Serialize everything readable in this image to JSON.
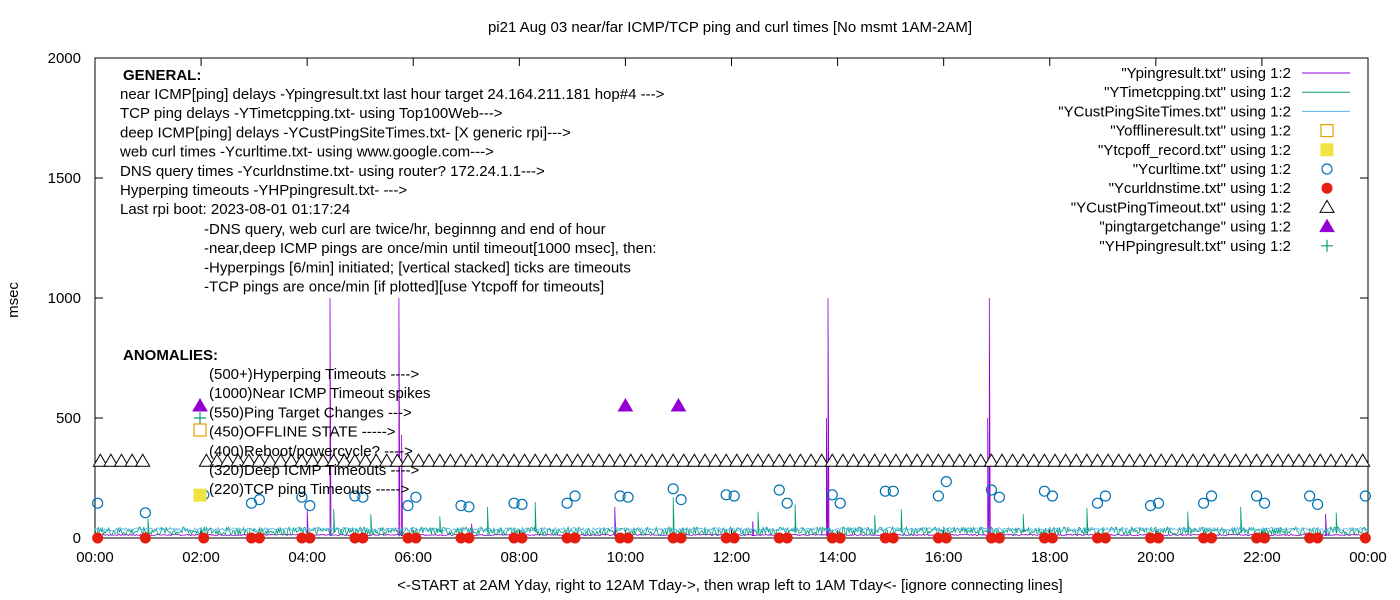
{
  "chart_data": {
    "type": "line",
    "title": "pi21 Aug 03  near/far ICMP/TCP ping and curl times [No msmt 1AM-2AM]",
    "xlabel": "<-START at 2AM Yday, right to 12AM Tday->, then wrap left to 1AM Tday<- [ignore connecting lines]",
    "ylabel": "msec",
    "xlim": [
      0,
      24
    ],
    "ylim": [
      0,
      2000
    ],
    "grid": false,
    "legend_position": "top-right",
    "x_ticks": [
      {
        "v": 0,
        "label": "00:00"
      },
      {
        "v": 2,
        "label": "02:00"
      },
      {
        "v": 4,
        "label": "04:00"
      },
      {
        "v": 6,
        "label": "06:00"
      },
      {
        "v": 8,
        "label": "08:00"
      },
      {
        "v": 10,
        "label": "10:00"
      },
      {
        "v": 12,
        "label": "12:00"
      },
      {
        "v": 14,
        "label": "14:00"
      },
      {
        "v": 16,
        "label": "16:00"
      },
      {
        "v": 18,
        "label": "18:00"
      },
      {
        "v": 20,
        "label": "20:00"
      },
      {
        "v": 22,
        "label": "22:00"
      },
      {
        "v": 24,
        "label": "00:00"
      }
    ],
    "y_ticks": [
      {
        "v": 0,
        "label": "0"
      },
      {
        "v": 500,
        "label": "500"
      },
      {
        "v": 1000,
        "label": "1000"
      },
      {
        "v": 1500,
        "label": "1500"
      },
      {
        "v": 2000,
        "label": "2000"
      }
    ],
    "annotations": {
      "general_heading": "GENERAL:",
      "general_lines": [
        "near ICMP[ping] delays -Ypingresult.txt last hour target 24.164.211.181 hop#4 --->",
        "TCP ping delays -YTimetcpping.txt- using Top100Web--->",
        "deep ICMP[ping] delays -YCustPingSiteTimes.txt- [X generic rpi]--->",
        "web curl times -Ycurltime.txt- using www.google.com--->",
        "DNS query times -Ycurldnstime.txt- using router? 172.24.1.1--->",
        "Hyperping timeouts -YHPpingresult.txt- --->",
        "Last rpi boot: 2023-08-01 01:17:24"
      ],
      "notes": [
        "-DNS query, web curl are twice/hr, beginnng and end of hour",
        "-near,deep ICMP pings are once/min until timeout[1000 msec], then:",
        "  -Hyperpings [6/min] initiated; [vertical stacked] ticks are timeouts",
        "-TCP pings are once/min [if plotted][use Ytcpoff for timeouts]"
      ],
      "anomalies_heading": "ANOMALIES:",
      "anomaly_lines": [
        "(500+)Hyperping Timeouts ---->",
        "(1000)Near ICMP Timeout spikes",
        "(550)Ping Target Changes --->",
        "(450)OFFLINE STATE ----->",
        "(400)Reboot/powercycle? ---->",
        "(320)Deep ICMP Timeouts ---->",
        "(220)TCP ping Timeouts ----->"
      ]
    },
    "series": [
      {
        "name": "\"Ypingresult.txt\" using 1:2",
        "color": "#9400d3",
        "style": "line",
        "baseline": 10,
        "spikes": [
          {
            "x": 4.43,
            "y": 1000
          },
          {
            "x": 5.73,
            "y": 1000
          },
          {
            "x": 5.78,
            "y": 430
          },
          {
            "x": 13.82,
            "y": 1000
          },
          {
            "x": 13.79,
            "y": 500
          },
          {
            "x": 16.86,
            "y": 1000
          },
          {
            "x": 16.83,
            "y": 500
          },
          {
            "x": 4.0,
            "y": 120
          },
          {
            "x": 7.1,
            "y": 60
          },
          {
            "x": 9.8,
            "y": 130
          },
          {
            "x": 12.4,
            "y": 70
          },
          {
            "x": 23.2,
            "y": 100
          }
        ]
      },
      {
        "name": "\"YTimetcpping.txt\" using 1:2",
        "color": "#009e73",
        "style": "line",
        "baseline": 25,
        "noise_amplitude": 35,
        "spikes": [
          {
            "x": 1.0,
            "y": 80
          },
          {
            "x": 4.5,
            "y": 120
          },
          {
            "x": 5.2,
            "y": 100
          },
          {
            "x": 6.5,
            "y": 90
          },
          {
            "x": 7.4,
            "y": 130
          },
          {
            "x": 8.3,
            "y": 150
          },
          {
            "x": 10.9,
            "y": 170
          },
          {
            "x": 12.5,
            "y": 110
          },
          {
            "x": 13.2,
            "y": 140
          },
          {
            "x": 14.7,
            "y": 95
          },
          {
            "x": 15.2,
            "y": 120
          },
          {
            "x": 17.5,
            "y": 100
          },
          {
            "x": 18.7,
            "y": 125
          },
          {
            "x": 20.6,
            "y": 110
          },
          {
            "x": 21.6,
            "y": 130
          },
          {
            "x": 23.4,
            "y": 105
          }
        ]
      },
      {
        "name": "\"YCustPingSiteTimes.txt\" using 1:2",
        "color": "#56b4e9",
        "style": "line",
        "baseline": 35,
        "noise_amplitude": 15
      },
      {
        "name": "\"Yofflineresult.txt\" using 1:2",
        "color": "#e69f00",
        "style": "open-square",
        "points": []
      },
      {
        "name": "\"Ytcpoff_record.txt\" using 1:2",
        "color": "#f0e442",
        "style": "filled-square",
        "points": []
      },
      {
        "name": "\"Ycurltime.txt\" using 1:2",
        "color": "#0072b2",
        "style": "open-circle",
        "points": [
          {
            "x": 0.05,
            "y": 145
          },
          {
            "x": 0.95,
            "y": 105
          },
          {
            "x": 2.05,
            "y": 180
          },
          {
            "x": 2.95,
            "y": 145
          },
          {
            "x": 3.1,
            "y": 160
          },
          {
            "x": 3.9,
            "y": 170
          },
          {
            "x": 4.05,
            "y": 135
          },
          {
            "x": 4.9,
            "y": 175
          },
          {
            "x": 5.05,
            "y": 170
          },
          {
            "x": 5.9,
            "y": 135
          },
          {
            "x": 6.05,
            "y": 170
          },
          {
            "x": 6.9,
            "y": 135
          },
          {
            "x": 7.05,
            "y": 130
          },
          {
            "x": 7.9,
            "y": 145
          },
          {
            "x": 8.05,
            "y": 140
          },
          {
            "x": 8.9,
            "y": 145
          },
          {
            "x": 9.05,
            "y": 175
          },
          {
            "x": 9.9,
            "y": 175
          },
          {
            "x": 10.05,
            "y": 170
          },
          {
            "x": 10.9,
            "y": 205
          },
          {
            "x": 11.05,
            "y": 160
          },
          {
            "x": 11.9,
            "y": 180
          },
          {
            "x": 12.05,
            "y": 175
          },
          {
            "x": 12.9,
            "y": 200
          },
          {
            "x": 13.05,
            "y": 145
          },
          {
            "x": 13.9,
            "y": 180
          },
          {
            "x": 14.05,
            "y": 145
          },
          {
            "x": 14.9,
            "y": 195
          },
          {
            "x": 15.05,
            "y": 195
          },
          {
            "x": 15.9,
            "y": 175
          },
          {
            "x": 16.05,
            "y": 235
          },
          {
            "x": 16.9,
            "y": 200
          },
          {
            "x": 17.05,
            "y": 170
          },
          {
            "x": 17.9,
            "y": 195
          },
          {
            "x": 18.05,
            "y": 175
          },
          {
            "x": 18.9,
            "y": 145
          },
          {
            "x": 19.05,
            "y": 175
          },
          {
            "x": 19.9,
            "y": 135
          },
          {
            "x": 20.05,
            "y": 145
          },
          {
            "x": 20.9,
            "y": 145
          },
          {
            "x": 21.05,
            "y": 175
          },
          {
            "x": 21.9,
            "y": 175
          },
          {
            "x": 22.05,
            "y": 145
          },
          {
            "x": 22.9,
            "y": 175
          },
          {
            "x": 23.05,
            "y": 140
          },
          {
            "x": 23.95,
            "y": 175
          }
        ]
      },
      {
        "name": "\"Ycurldnstime.txt\" using 1:2",
        "color": "#e51e10",
        "style": "filled-circle",
        "points": [
          {
            "x": 0.05,
            "y": 0
          },
          {
            "x": 0.95,
            "y": 0
          },
          {
            "x": 2.05,
            "y": 0
          },
          {
            "x": 2.95,
            "y": 0
          },
          {
            "x": 3.1,
            "y": 0
          },
          {
            "x": 3.9,
            "y": 0
          },
          {
            "x": 4.05,
            "y": 0
          },
          {
            "x": 4.9,
            "y": 0
          },
          {
            "x": 5.05,
            "y": 0
          },
          {
            "x": 5.9,
            "y": 0
          },
          {
            "x": 6.05,
            "y": 0
          },
          {
            "x": 6.9,
            "y": 0
          },
          {
            "x": 7.05,
            "y": 0
          },
          {
            "x": 7.9,
            "y": 0
          },
          {
            "x": 8.05,
            "y": 0
          },
          {
            "x": 8.9,
            "y": 0
          },
          {
            "x": 9.05,
            "y": 0
          },
          {
            "x": 9.9,
            "y": 0
          },
          {
            "x": 10.05,
            "y": 0
          },
          {
            "x": 10.9,
            "y": 0
          },
          {
            "x": 11.05,
            "y": 0
          },
          {
            "x": 11.9,
            "y": 0
          },
          {
            "x": 12.05,
            "y": 0
          },
          {
            "x": 12.9,
            "y": 0
          },
          {
            "x": 13.05,
            "y": 0
          },
          {
            "x": 13.9,
            "y": 0
          },
          {
            "x": 14.05,
            "y": 0
          },
          {
            "x": 14.9,
            "y": 0
          },
          {
            "x": 15.05,
            "y": 0
          },
          {
            "x": 15.9,
            "y": 0
          },
          {
            "x": 16.05,
            "y": 0
          },
          {
            "x": 16.9,
            "y": 0
          },
          {
            "x": 17.05,
            "y": 0
          },
          {
            "x": 17.9,
            "y": 0
          },
          {
            "x": 18.05,
            "y": 0
          },
          {
            "x": 18.9,
            "y": 0
          },
          {
            "x": 19.05,
            "y": 0
          },
          {
            "x": 19.9,
            "y": 0
          },
          {
            "x": 20.05,
            "y": 0
          },
          {
            "x": 20.9,
            "y": 0
          },
          {
            "x": 21.05,
            "y": 0
          },
          {
            "x": 21.9,
            "y": 0
          },
          {
            "x": 22.05,
            "y": 0
          },
          {
            "x": 22.9,
            "y": 0
          },
          {
            "x": 23.05,
            "y": 0
          },
          {
            "x": 23.95,
            "y": 0
          }
        ]
      },
      {
        "name": "\"YCustPingTimeout.txt\" using 1:2",
        "color": "#000000",
        "style": "open-triangle",
        "x_start": 0.1,
        "x_end": 23.9,
        "x_step": 0.2,
        "y": 320,
        "x_gaps": [
          [
            0.95,
            1.95
          ]
        ]
      },
      {
        "name": "\"pingtargetchange\" using 1:2",
        "color": "#9400d3",
        "style": "filled-triangle",
        "points": [
          {
            "x": 10.0,
            "y": 550
          },
          {
            "x": 11.0,
            "y": 550
          }
        ]
      },
      {
        "name": "\"YHPpingresult.txt\" using 1:2",
        "color": "#009e73",
        "style": "plus",
        "points": []
      }
    ],
    "anomaly_markers": [
      {
        "type": "filled-triangle",
        "color": "#9400d3",
        "y": 550
      },
      {
        "type": "plus",
        "color": "#009e73",
        "y": 500
      },
      {
        "type": "open-square",
        "color": "#e69f00",
        "y": 450
      },
      {
        "type": "filled-square",
        "color": "#f0e442",
        "y": 220
      }
    ]
  }
}
